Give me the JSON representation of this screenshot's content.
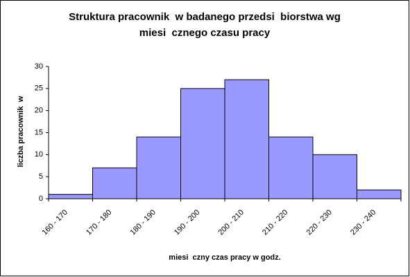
{
  "chart_data": {
    "type": "bar",
    "title": [
      "Struktura pracownik  w badanego przedsi  biorstwa wg",
      "miesi  cznego czasu pracy"
    ],
    "x_label": "miesi  czny czas pracy w godz.",
    "y_label": "liczba pracownik  w",
    "categories": [
      "160 - 170",
      "170 - 180",
      "180 - 190",
      "190 - 200",
      "200 - 210",
      "210 - 220",
      "220 - 230",
      "230 - 240"
    ],
    "values": [
      1,
      7,
      14,
      25,
      27,
      14,
      10,
      2
    ],
    "color": "#9999ff",
    "ylim": [
      0,
      30
    ],
    "yticks": [
      0,
      5,
      10,
      15,
      20,
      25,
      30
    ],
    "grid": false
  }
}
